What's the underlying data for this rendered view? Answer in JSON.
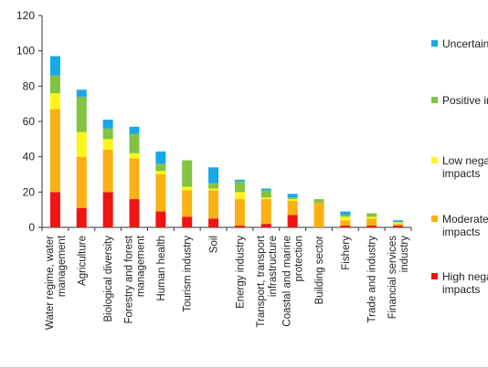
{
  "chart_data": {
    "type": "bar",
    "stacked": true,
    "categories": [
      [
        "Water regime, water",
        "management"
      ],
      [
        "Agriculture"
      ],
      [
        "Biological diversity"
      ],
      [
        "Forestry and forest",
        "management"
      ],
      [
        "Human health"
      ],
      [
        "Tourism industry"
      ],
      [
        "Soil"
      ],
      [
        "Energy industry"
      ],
      [
        "Transport, transport",
        "infrastructure"
      ],
      [
        "Coastal and marine",
        "protection"
      ],
      [
        "Building sector"
      ],
      [
        "Fishery"
      ],
      [
        "Trade and industry"
      ],
      [
        "Financial services",
        "industry"
      ]
    ],
    "series": [
      {
        "name": [
          "High nega",
          "impacts"
        ],
        "color": "#f01414",
        "values": [
          20,
          11,
          20,
          16,
          9,
          6,
          5,
          1,
          2,
          7,
          0,
          1,
          1,
          1
        ]
      },
      {
        "name": [
          "Moderate",
          "impacts"
        ],
        "color": "#fbb013",
        "values": [
          47,
          29,
          24,
          23,
          21,
          15,
          16,
          15,
          14,
          8,
          14,
          3,
          4,
          1
        ]
      },
      {
        "name": [
          "Low nega",
          "impacts"
        ],
        "color": "#fdf519",
        "values": [
          9,
          14,
          6,
          3,
          2,
          2,
          1,
          4,
          1,
          1,
          0,
          2,
          1,
          1
        ]
      },
      {
        "name": [
          "Positive im"
        ],
        "color": "#82c341",
        "values": [
          10,
          20,
          6,
          11,
          4,
          15,
          3,
          6,
          4,
          1,
          2,
          1,
          2,
          0
        ]
      },
      {
        "name": [
          "Uncertain"
        ],
        "color": "#18a8e8",
        "values": [
          11,
          4,
          5,
          4,
          7,
          0,
          9,
          1,
          1,
          2,
          0,
          2,
          0,
          1
        ]
      }
    ],
    "yticks": [
      0,
      20,
      40,
      60,
      80,
      100,
      120
    ],
    "ylim": [
      0,
      120
    ],
    "legend_position": "right",
    "grid": false
  }
}
